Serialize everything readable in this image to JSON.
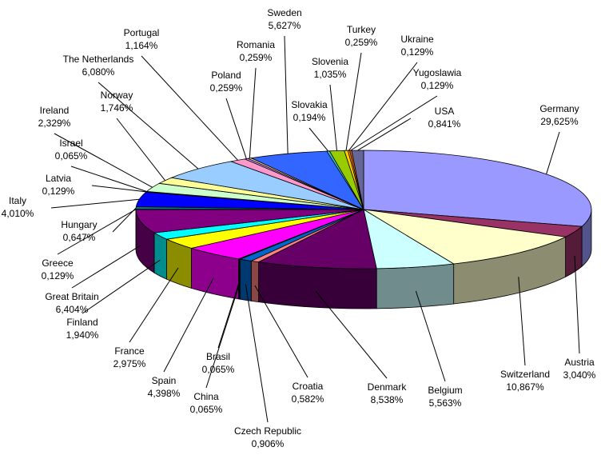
{
  "chart_data": {
    "type": "pie3d",
    "categories": [
      "Germany",
      "Austria",
      "Switzerland",
      "Belgium",
      "Denmark",
      "Croatia",
      "Czech Republic",
      "China",
      "Brasil",
      "Spain",
      "France",
      "Finland",
      "Great Britain",
      "Greece",
      "Hungary",
      "Italy",
      "Latvia",
      "Israel",
      "Ireland",
      "Norway",
      "The Netherlands",
      "Portugal",
      "Poland",
      "Romania",
      "Sweden",
      "Slovakia",
      "Slovenia",
      "Turkey",
      "Ukraine",
      "Yugoslawia",
      "USA"
    ],
    "values": [
      29.625,
      3.04,
      10.867,
      5.563,
      8.538,
      0.582,
      0.906,
      0.065,
      0.065,
      4.398,
      2.975,
      1.94,
      6.404,
      0.129,
      0.647,
      4.01,
      0.129,
      0.065,
      2.329,
      1.746,
      6.08,
      1.164,
      0.259,
      0.259,
      5.627,
      0.194,
      1.035,
      0.259,
      0.129,
      0.129,
      0.841
    ],
    "value_labels": [
      "29,625%",
      "3,040%",
      "10,867%",
      "5,563%",
      "8,538%",
      "0,582%",
      "0,906%",
      "0,065%",
      "0,065%",
      "4,398%",
      "2,975%",
      "1,940%",
      "6,404%",
      "0,129%",
      "0,647%",
      "4,010%",
      "0,129%",
      "0,065%",
      "2,329%",
      "1,746%",
      "6,080%",
      "1,164%",
      "0,259%",
      "0,259%",
      "5,627%",
      "0,194%",
      "1,035%",
      "0,259%",
      "0,129%",
      "0,129%",
      "0,841%"
    ],
    "colors": [
      "#9999ff",
      "#993366",
      "#ffffcc",
      "#ccffff",
      "#660066",
      "#ff8080",
      "#0066cc",
      "#ccccff",
      "#000080",
      "#ff00ff",
      "#ffff00",
      "#00ffff",
      "#800080",
      "#800000",
      "#008080",
      "#0000ff",
      "#00ccff",
      "#ccffff",
      "#ccffcc",
      "#ffff99",
      "#99ccff",
      "#ff99cc",
      "#cc99ff",
      "#ffcc99",
      "#3366ff",
      "#33cccc",
      "#99cc00",
      "#ffcc00",
      "#ff9900",
      "#ff6600",
      "#666699"
    ]
  }
}
